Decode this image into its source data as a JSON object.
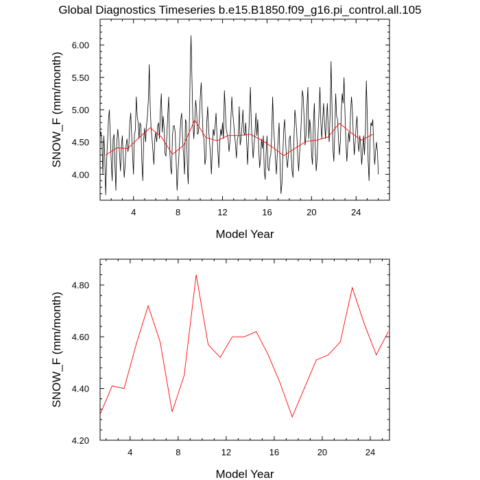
{
  "title": "Global Diagnostics Timeseries b.e15.B1850.f09_g16.pi_control.all.105",
  "colors": {
    "monthly": "#000000",
    "annual": "#ff0000"
  },
  "chart_data": [
    {
      "type": "line",
      "xlabel": "Model Year",
      "ylabel": "SNOW_F (mm/month)",
      "xlim": [
        1,
        27
      ],
      "ylim": [
        3.6,
        6.4
      ],
      "xticks": [
        "4",
        "8",
        "12",
        "16",
        "20",
        "24"
      ],
      "yticks": [
        "4.00",
        "4.50",
        "5.00",
        "5.50",
        "6.00"
      ],
      "series": [
        {
          "name": "monthly",
          "x_start": 1.0,
          "x_step": 0.0833333,
          "values": [
            4.6,
            4.66,
            4.5,
            4.0,
            4.6,
            4.28,
            3.68,
            4.2,
            4.5,
            4.85,
            5.0,
            4.58,
            4.2,
            3.9,
            4.55,
            4.62,
            4.15,
            3.75,
            4.5,
            4.7,
            4.55,
            4.3,
            4.05,
            4.45,
            4.6,
            4.25,
            3.95,
            4.15,
            4.45,
            4.55,
            4.35,
            4.45,
            4.8,
            4.95,
            4.6,
            4.3,
            4.0,
            4.62,
            4.68,
            5.2,
            4.9,
            4.8,
            4.55,
            4.8,
            4.75,
            4.2,
            3.9,
            4.55,
            4.72,
            4.5,
            4.75,
            4.9,
            5.15,
            5.7,
            5.05,
            4.7,
            4.55,
            4.35,
            4.15,
            4.55,
            4.65,
            4.5,
            4.75,
            4.8,
            4.55,
            5.0,
            5.25,
            4.65,
            4.9,
            4.72,
            4.32,
            4.28,
            4.62,
            4.95,
            5.2,
            4.4,
            4.1,
            4.0,
            4.6,
            4.75,
            4.75,
            4.65,
            4.2,
            3.75,
            4.05,
            4.3,
            4.6,
            4.85,
            4.95,
            4.5,
            4.3,
            4.0,
            4.85,
            4.8,
            4.15,
            3.85,
            4.6,
            5.5,
            6.15,
            5.5,
            4.85,
            4.55,
            4.8,
            5.15,
            5.0,
            4.62,
            4.65,
            4.85,
            5.2,
            5.42,
            5.0,
            4.6,
            4.55,
            4.15,
            4.25,
            4.8,
            5.05,
            4.7,
            4.5,
            4.3,
            4.0,
            4.4,
            4.7,
            4.6,
            4.75,
            4.95,
            4.6,
            4.35,
            4.1,
            4.5,
            4.7,
            4.6,
            4.8,
            4.55,
            5.3,
            5.0,
            4.7,
            4.62,
            4.55,
            4.35,
            4.5,
            4.85,
            5.2,
            4.95,
            4.8,
            4.62,
            4.45,
            4.25,
            4.55,
            4.6,
            5.05,
            4.45,
            4.55,
            4.75,
            5.0,
            4.65,
            4.6,
            4.8,
            4.5,
            4.15,
            4.55,
            4.9,
            5.35,
            4.8,
            4.5,
            4.25,
            4.45,
            4.65,
            4.95,
            4.6,
            4.85,
            4.4,
            4.1,
            4.25,
            4.55,
            4.4,
            4.6,
            4.05,
            3.92,
            4.35,
            4.6,
            4.1,
            4.05,
            4.25,
            4.3,
            4.6,
            5.2,
            4.75,
            4.5,
            4.25,
            4.0,
            4.3,
            4.55,
            4.8,
            4.15,
            3.7,
            3.85,
            4.3,
            4.7,
            4.85,
            4.5,
            4.25,
            4.1,
            4.3,
            4.55,
            4.6,
            4.3,
            4.05,
            3.95,
            4.55,
            5.0,
            4.85,
            4.65,
            4.3,
            4.05,
            4.3,
            4.55,
            4.85,
            5.3,
            5.2,
            4.85,
            4.45,
            4.6,
            5.05,
            5.35,
            4.55,
            4.85,
            4.7,
            4.3,
            4.15,
            4.8,
            5.1,
            4.4,
            4.05,
            4.25,
            4.65,
            4.95,
            5.35,
            4.8,
            4.55,
            4.85,
            5.1,
            4.8,
            4.55,
            4.85,
            5.1,
            4.7,
            4.5,
            4.95,
            5.75,
            5.05,
            4.4,
            4.2,
            4.65,
            5.25,
            4.9,
            4.85,
            4.55,
            4.3,
            4.5,
            4.95,
            5.25,
            5.1,
            5.5,
            4.95,
            4.5,
            4.2,
            4.45,
            4.65,
            4.5,
            4.95,
            5.2,
            5.0,
            4.6,
            4.3,
            4.5,
            4.75,
            4.9,
            4.5,
            4.35,
            4.6,
            4.45,
            4.15,
            4.35,
            4.6,
            4.3,
            4.65,
            5.45,
            4.95,
            4.2,
            3.9,
            4.5,
            4.8,
            4.75,
            4.85,
            4.45,
            4.15,
            4.35,
            4.5,
            4.35,
            4.0
          ]
        },
        {
          "name": "annual",
          "x": [
            1.5,
            2.5,
            3.5,
            4.5,
            5.5,
            6.5,
            7.5,
            8.5,
            9.5,
            10.5,
            11.5,
            12.5,
            13.5,
            14.5,
            15.5,
            16.5,
            17.5,
            18.5,
            19.5,
            20.5,
            21.5,
            22.5,
            23.5,
            24.5,
            25.5
          ],
          "values": [
            4.3,
            4.41,
            4.4,
            4.57,
            4.72,
            4.58,
            4.31,
            4.45,
            4.84,
            4.57,
            4.52,
            4.6,
            4.6,
            4.62,
            4.53,
            4.42,
            4.29,
            4.4,
            4.51,
            4.53,
            4.58,
            4.79,
            4.65,
            4.53,
            4.62
          ]
        }
      ]
    },
    {
      "type": "line",
      "xlabel": "Model Year",
      "ylabel": "SNOW_F (mm/month)",
      "xlim": [
        1.5,
        25.6
      ],
      "ylim": [
        4.2,
        4.9
      ],
      "xticks": [
        "4",
        "8",
        "12",
        "16",
        "20",
        "24"
      ],
      "yticks": [
        "4.20",
        "4.40",
        "4.60",
        "4.80"
      ],
      "series": [
        {
          "name": "annual",
          "x": [
            1.5,
            2.5,
            3.5,
            4.5,
            5.5,
            6.5,
            7.5,
            8.5,
            9.5,
            10.5,
            11.5,
            12.5,
            13.5,
            14.5,
            15.5,
            16.5,
            17.5,
            18.5,
            19.5,
            20.5,
            21.5,
            22.5,
            23.5,
            24.5,
            25.5
          ],
          "values": [
            4.3,
            4.41,
            4.4,
            4.57,
            4.72,
            4.58,
            4.31,
            4.45,
            4.84,
            4.57,
            4.52,
            4.6,
            4.6,
            4.62,
            4.53,
            4.42,
            4.29,
            4.4,
            4.51,
            4.53,
            4.58,
            4.79,
            4.65,
            4.53,
            4.62
          ]
        }
      ]
    }
  ]
}
